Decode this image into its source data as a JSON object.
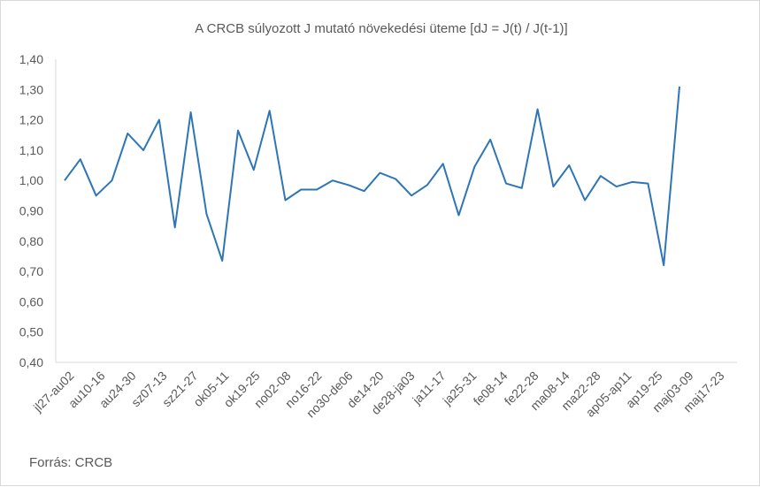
{
  "chart_data": {
    "type": "line",
    "title": "A CRCB súlyozott J mutató növekedési üteme [dJ = J(t) / J(t-1)]",
    "xlabel": "",
    "ylabel": "",
    "ylim": [
      0.4,
      1.4
    ],
    "yticks": [
      "0,40",
      "0,50",
      "0,60",
      "0,70",
      "0,80",
      "0,90",
      "1,00",
      "1,10",
      "1,20",
      "1,30",
      "1,40"
    ],
    "grid": false,
    "legend": "none",
    "line_color": "#2e75b6",
    "x_labels": [
      "jl27-au02",
      "au10-16",
      "au24-30",
      "sz07-13",
      "sz21-27",
      "ok05-11",
      "ok19-25",
      "no02-08",
      "no16-22",
      "no30-de06",
      "de14-20",
      "de28-ja03",
      "ja11-17",
      "ja25-31",
      "fe08-14",
      "fe22-28",
      "ma08-14",
      "ma22-28",
      "ap05-ap11",
      "ap19-25",
      "maj03-09",
      "maj17-23"
    ],
    "values": [
      1.0,
      1.07,
      0.95,
      1.0,
      1.155,
      1.1,
      1.2,
      0.845,
      1.225,
      0.89,
      0.735,
      1.165,
      1.035,
      1.23,
      0.935,
      0.97,
      0.97,
      1.0,
      0.985,
      0.965,
      1.025,
      1.005,
      0.95,
      0.985,
      1.055,
      0.885,
      1.045,
      1.135,
      0.99,
      0.975,
      1.235,
      0.98,
      1.05,
      0.935,
      1.015,
      0.98,
      0.995,
      0.99,
      0.72,
      1.31
    ]
  },
  "source": "Forrás: CRCB"
}
